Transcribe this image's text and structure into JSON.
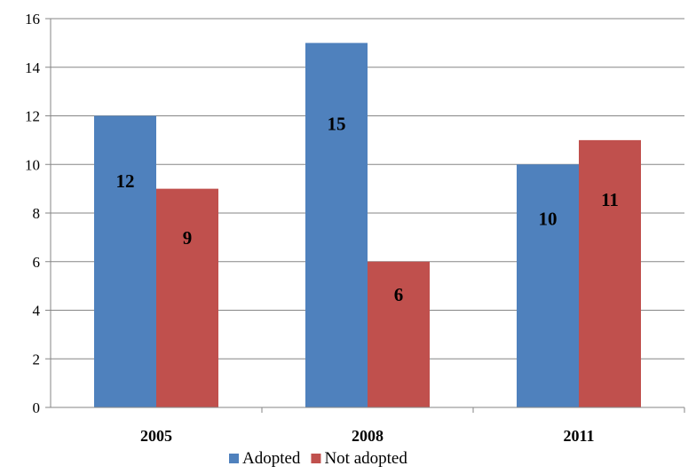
{
  "chart_data": {
    "type": "bar",
    "categories": [
      "2005",
      "2008",
      "2011"
    ],
    "series": [
      {
        "name": "Adopted",
        "values": [
          12,
          15,
          10
        ],
        "color": "#4f81bd"
      },
      {
        "name": "Not adopted",
        "values": [
          9,
          6,
          11
        ],
        "color": "#c0504d"
      }
    ],
    "ylim": [
      0,
      16
    ],
    "yticks": [
      0,
      2,
      4,
      6,
      8,
      10,
      12,
      14,
      16
    ],
    "grid": true,
    "legend": "bottom",
    "data_labels": true,
    "gridline_color": "#868686"
  }
}
